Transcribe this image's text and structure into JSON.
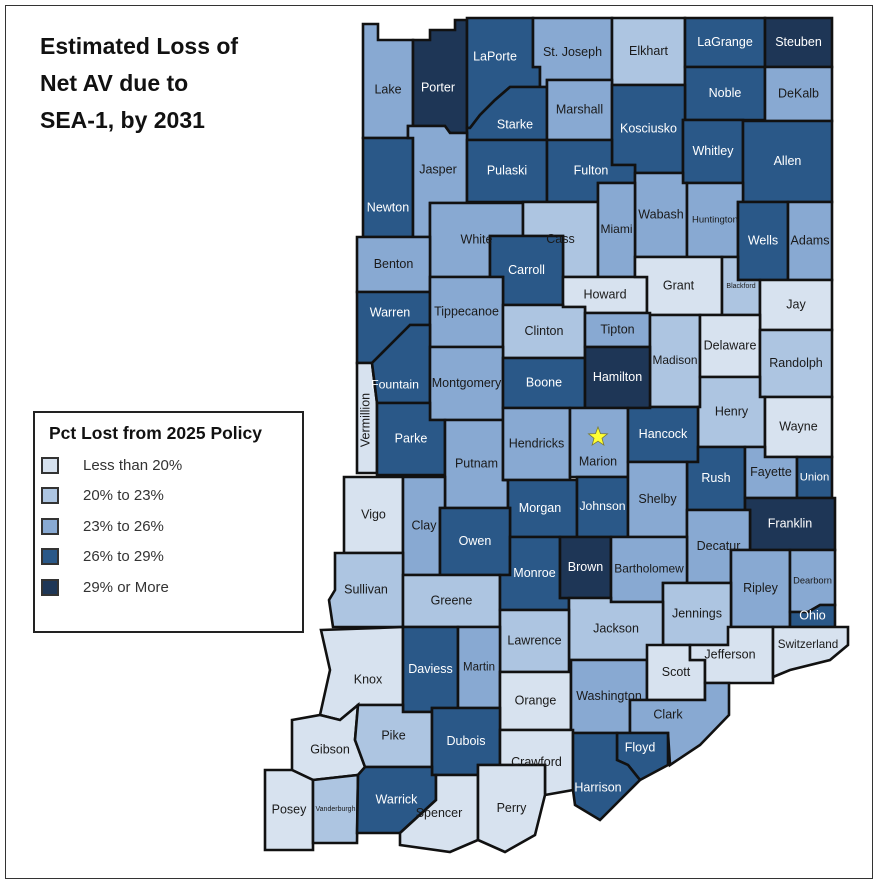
{
  "title": [
    "Estimated Loss of",
    "Net AV due to",
    "SEA-1, by 2031"
  ],
  "legend": {
    "title": "Pct Lost from 2025 Policy",
    "classes": [
      {
        "label": "Less than 20%",
        "color": "#d7e2ef"
      },
      {
        "label": "20% to 23%",
        "color": "#adc5e1"
      },
      {
        "label": "23% to 26%",
        "color": "#88a9d2"
      },
      {
        "label": "26% to 29%",
        "color": "#2a5888"
      },
      {
        "label": "29% or More",
        "color": "#1e3656"
      }
    ]
  },
  "marker": {
    "county": "Marion",
    "icon": "star-icon",
    "color": "#ffff33"
  },
  "counties": [
    {
      "name": "Lake",
      "class": 3
    },
    {
      "name": "Porter",
      "class": 5
    },
    {
      "name": "LaPorte",
      "class": 4
    },
    {
      "name": "St. Joseph",
      "class": 3
    },
    {
      "name": "Elkhart",
      "class": 2
    },
    {
      "name": "LaGrange",
      "class": 4
    },
    {
      "name": "Steuben",
      "class": 5
    },
    {
      "name": "Noble",
      "class": 4
    },
    {
      "name": "DeKalb",
      "class": 3
    },
    {
      "name": "Starke",
      "class": 4
    },
    {
      "name": "Marshall",
      "class": 3
    },
    {
      "name": "Kosciusko",
      "class": 4
    },
    {
      "name": "Whitley",
      "class": 4
    },
    {
      "name": "Allen",
      "class": 4
    },
    {
      "name": "Newton",
      "class": 4
    },
    {
      "name": "Jasper",
      "class": 3
    },
    {
      "name": "Pulaski",
      "class": 4
    },
    {
      "name": "Fulton",
      "class": 4
    },
    {
      "name": "Wabash",
      "class": 3
    },
    {
      "name": "Huntington",
      "class": 3
    },
    {
      "name": "Wells",
      "class": 4
    },
    {
      "name": "Adams",
      "class": 3
    },
    {
      "name": "White",
      "class": 3
    },
    {
      "name": "Cass",
      "class": 2
    },
    {
      "name": "Miami",
      "class": 3
    },
    {
      "name": "Benton",
      "class": 3
    },
    {
      "name": "Carroll",
      "class": 4
    },
    {
      "name": "Howard",
      "class": 1
    },
    {
      "name": "Grant",
      "class": 1
    },
    {
      "name": "Blackford",
      "class": 2
    },
    {
      "name": "Jay",
      "class": 1
    },
    {
      "name": "Warren",
      "class": 4
    },
    {
      "name": "Tippecanoe",
      "class": 3
    },
    {
      "name": "Clinton",
      "class": 2
    },
    {
      "name": "Tipton",
      "class": 3
    },
    {
      "name": "Madison",
      "class": 2
    },
    {
      "name": "Delaware",
      "class": 1
    },
    {
      "name": "Randolph",
      "class": 2
    },
    {
      "name": "Vermillion",
      "class": 1
    },
    {
      "name": "Fountain",
      "class": 4
    },
    {
      "name": "Montgomery",
      "class": 3
    },
    {
      "name": "Boone",
      "class": 4
    },
    {
      "name": "Hamilton",
      "class": 5
    },
    {
      "name": "Henry",
      "class": 2
    },
    {
      "name": "Wayne",
      "class": 1
    },
    {
      "name": "Parke",
      "class": 4
    },
    {
      "name": "Putnam",
      "class": 3
    },
    {
      "name": "Hendricks",
      "class": 3
    },
    {
      "name": "Marion",
      "class": 3
    },
    {
      "name": "Hancock",
      "class": 4
    },
    {
      "name": "Rush",
      "class": 4
    },
    {
      "name": "Fayette",
      "class": 3
    },
    {
      "name": "Union",
      "class": 4
    },
    {
      "name": "Vigo",
      "class": 1
    },
    {
      "name": "Clay",
      "class": 3
    },
    {
      "name": "Morgan",
      "class": 4
    },
    {
      "name": "Johnson",
      "class": 4
    },
    {
      "name": "Shelby",
      "class": 3
    },
    {
      "name": "Franklin",
      "class": 5
    },
    {
      "name": "Owen",
      "class": 4
    },
    {
      "name": "Decatur",
      "class": 3
    },
    {
      "name": "Sullivan",
      "class": 2
    },
    {
      "name": "Greene",
      "class": 2
    },
    {
      "name": "Monroe",
      "class": 4
    },
    {
      "name": "Brown",
      "class": 5
    },
    {
      "name": "Bartholomew",
      "class": 3
    },
    {
      "name": "Ripley",
      "class": 3
    },
    {
      "name": "Dearborn",
      "class": 3
    },
    {
      "name": "Ohio",
      "class": 4
    },
    {
      "name": "Jennings",
      "class": 2
    },
    {
      "name": "Jackson",
      "class": 2
    },
    {
      "name": "Lawrence",
      "class": 2
    },
    {
      "name": "Knox",
      "class": 1
    },
    {
      "name": "Daviess",
      "class": 4
    },
    {
      "name": "Martin",
      "class": 3
    },
    {
      "name": "Orange",
      "class": 1
    },
    {
      "name": "Washington",
      "class": 3
    },
    {
      "name": "Scott",
      "class": 1
    },
    {
      "name": "Jefferson",
      "class": 1
    },
    {
      "name": "Switzerland",
      "class": 1
    },
    {
      "name": "Clark",
      "class": 3
    },
    {
      "name": "Gibson",
      "class": 1
    },
    {
      "name": "Pike",
      "class": 2
    },
    {
      "name": "Dubois",
      "class": 4
    },
    {
      "name": "Crawford",
      "class": 1
    },
    {
      "name": "Floyd",
      "class": 4
    },
    {
      "name": "Harrison",
      "class": 4
    },
    {
      "name": "Posey",
      "class": 1
    },
    {
      "name": "Vanderburgh",
      "class": 2
    },
    {
      "name": "Warrick",
      "class": 4
    },
    {
      "name": "Spencer",
      "class": 1
    },
    {
      "name": "Perry",
      "class": 1
    }
  ]
}
